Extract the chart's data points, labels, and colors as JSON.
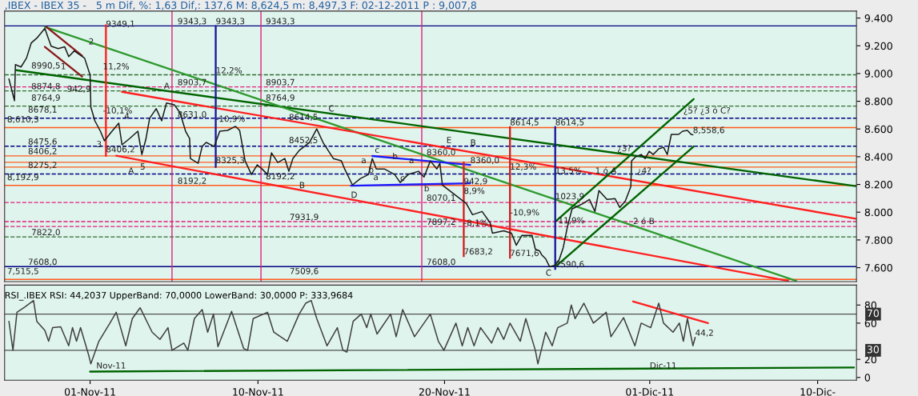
{
  "chart_data": [
    {
      "type": "line",
      "title": ",IBEX - IBEX 35 -   5 m Dif, %: 1,63 Dif,: 137,6 M: 8,624,5 m: 8,497,3 F: 02-12-2011 P : 9,007,8",
      "xlim": [
        "2011-10-27T10:00",
        "2011-12-12T02:00"
      ],
      "ylim": [
        7500,
        9450
      ],
      "yticks": [
        {
          "value": 7600,
          "label": "7.600"
        },
        {
          "value": 7800,
          "label": "7.800"
        },
        {
          "value": 8000,
          "label": "8.000"
        },
        {
          "value": 8200,
          "label": "8.200"
        },
        {
          "value": 8400,
          "label": "8.400"
        },
        {
          "value": 8600,
          "label": "8.600"
        },
        {
          "value": 8800,
          "label": "8.800"
        },
        {
          "value": 9000,
          "label": "9.000"
        },
        {
          "value": 9200,
          "label": "9.200"
        },
        {
          "value": 9400,
          "label": "9.400"
        }
      ],
      "tick_labels": "y",
      "grid": false,
      "series": [
        {
          "color": "#1a1a1a",
          "x": [
            "2011-10-27T15:35",
            "2011-10-27T22:45",
            "2011-10-27T23:55",
            "2011-10-28T07:06",
            "2011-10-28T14:12",
            "2011-10-28T20:21",
            "2011-10-29T03:27",
            "2011-10-29T13:48",
            "2011-10-29T16:44",
            "2011-10-29T21:53",
            "2011-10-30T06:56",
            "2011-10-30T15:22",
            "2011-10-30T20:31",
            "2011-10-31T03:38",
            "2011-10-31T16:54",
            "2011-11-01T00:00",
            "2011-11-01T00:58",
            "2011-11-01T06:08",
            "2011-11-01T13:15",
            "2011-11-01T18:25",
            "2011-11-02T02:31",
            "2011-11-02T12:51",
            "2011-11-02T17:04",
            "2011-11-03T03:05",
            "2011-11-03T13:25",
            "2011-11-03T18:36",
            "2011-11-03T23:46",
            "2011-11-04T04:37",
            "2011-11-04T13:02",
            "2011-11-04T20:08",
            "2011-11-05T02:17",
            "2011-11-05T12:18",
            "2011-11-05T19:44",
            "2011-11-06T02:51",
            "2011-11-06T08:01",
            "2011-11-06T09:00",
            "2011-11-06T19:01",
            "2011-11-07T00:11",
            "2011-11-07T05:21",
            "2011-11-07T15:42",
            "2011-11-07T22:49",
            "2011-11-08T08:50",
            "2011-11-08T19:11",
            "2011-11-09T00:22",
            "2011-11-09T07:28",
            "2011-11-09T15:33",
            "2011-11-09T22:59",
            "2011-11-10T05:07",
            "2011-11-10T12:14",
            "2011-11-10T17:24",
            "2011-11-11T01:29",
            "2011-11-11T10:32",
            "2011-11-11T15:43",
            "2011-11-11T20:53",
            "2011-11-12T04:58",
            "2011-11-12T18:13",
            "2011-11-13T03:36",
            "2011-11-13T11:41",
            "2011-11-14T00:56",
            "2011-11-14T11:17",
            "2011-11-14T15:29",
            "2011-11-15T01:31",
            "2011-11-15T11:51",
            "2011-11-15T22:12",
            "2011-11-16T03:03",
            "2011-11-16T08:13",
            "2011-11-16T18:33",
            "2011-11-17T07:49",
            "2011-11-17T14:56",
            "2011-11-18T01:16",
            "2011-11-18T14:31",
            "2011-11-18T21:39",
            "2011-11-19T05:43",
            "2011-11-19T14:08",
            "2011-11-19T18:00",
            "2011-11-19T21:14",
            "2011-11-21T03:58",
            "2011-11-21T12:01",
            "2011-11-22T00:19",
            "2011-11-22T10:39",
            "2011-11-22T13:34",
            "2011-11-23T04:08",
            "2011-11-23T14:08",
            "2011-11-23T20:17",
            "2011-11-24T03:23",
            "2011-11-24T16:39",
            "2011-11-24T20:51",
            "2011-11-25T02:01",
            "2011-11-25T04:56",
            "2011-11-25T10:06",
            "2011-11-25T15:17",
            "2011-11-25T22:24",
            "2011-11-26T03:33",
            "2011-11-26T08:44",
            "2011-11-26T13:55",
            "2011-11-26T20:02",
            "2011-11-27T10:16",
            "2011-11-27T18:22",
            "2011-11-28T01:28",
            "2011-11-28T06:39",
            "2011-11-28T16:59",
            "2011-11-29T03:20",
            "2011-11-29T09:29",
            "2011-11-29T16:35",
            "2011-11-29T23:41",
            "2011-11-30T00:40",
            "2011-11-30T05:50",
            "2011-11-30T12:58",
            "2011-11-30T18:07",
            "2011-11-30T23:18",
            "2011-12-01T04:28",
            "2011-12-01T11:35",
            "2011-12-01T17:44",
            "2011-12-01T22:35",
            "2011-12-02T03:45",
            "2011-12-02T13:08",
            "2011-12-02T18:17",
            "2011-12-03T00:26",
            "2011-12-03T05:17",
            "2011-12-03T07:34"
          ],
          "values": [
            8960,
            8804,
            9064,
            9047,
            9111,
            9221,
            9255,
            9325,
            9278,
            9197,
            9180,
            9192,
            9122,
            9163,
            9111,
            8989,
            8758,
            8659,
            8584,
            8515,
            8572,
            8642,
            8486,
            8532,
            8584,
            8416,
            8526,
            8677,
            8746,
            8659,
            8787,
            8775,
            8717,
            8584,
            8532,
            8387,
            8353,
            8474,
            8503,
            8474,
            8584,
            8590,
            8619,
            8590,
            8370,
            8272,
            8341,
            8312,
            8272,
            8428,
            8358,
            8387,
            8295,
            8387,
            8445,
            8503,
            8601,
            8503,
            8387,
            8370,
            8312,
            8196,
            8243,
            8272,
            8387,
            8312,
            8312,
            8272,
            8214,
            8272,
            8295,
            8254,
            8370,
            8312,
            8353,
            8196,
            8063,
            7982,
            8005,
            7924,
            7849,
            7866,
            7849,
            7762,
            7832,
            7832,
            7733,
            7722,
            7693,
            7664,
            7606,
            7618,
            7658,
            7745,
            7890,
            8023,
            8063,
            8092,
            8005,
            8156,
            8092,
            8098,
            8034,
            8081,
            8185,
            8370,
            8399,
            8416,
            8387,
            8439,
            8416,
            8457,
            8468,
            8416,
            8561,
            8561,
            8584,
            8590,
            8561,
            8558.6
          ]
        },
        {
          "color": "#006400",
          "x": [
            "2011-10-28T00:58",
            "2011-12-12T01:02"
          ],
          "values": [
            9024,
            8188
          ]
        },
        {
          "color": "#2e9a2e",
          "x": [
            "2011-10-29T13:48",
            "2011-12-08T20:25"
          ],
          "values": [
            9336,
            7505
          ]
        },
        {
          "color": "#ff2020",
          "x": [
            "2011-11-02T17:04",
            "2011-12-12T01:02"
          ],
          "values": [
            8868,
            7953
          ]
        },
        {
          "color": "#ff2020",
          "x": [
            "2011-11-02T09:37",
            "2011-12-08T10:05"
          ],
          "values": [
            8407,
            7505
          ]
        },
        {
          "color": "#006400",
          "x": [
            "2011-11-25T22:24",
            "2011-12-03T08:31"
          ],
          "values": [
            7606,
            8474
          ]
        },
        {
          "color": "#006400",
          "x": [
            "2011-11-25T23:21",
            "2011-12-03T08:31"
          ],
          "values": [
            7936,
            8816
          ]
        },
        {
          "color": "#1a1aff",
          "x": [
            "2011-11-16T03:03",
            "2011-11-21T09:07"
          ],
          "values": [
            8405,
            8341
          ]
        },
        {
          "color": "#1a1aff",
          "x": [
            "2011-11-14T23:34",
            "2011-11-21T09:07"
          ],
          "values": [
            8191,
            8208
          ]
        },
        {
          "color": "#8b1a1a",
          "x": [
            "2011-10-29T15:44",
            "2011-10-31T13:39"
          ],
          "values": [
            9336,
            9128
          ]
        },
        {
          "color": "#8b1a1a",
          "x": [
            "2011-10-29T13:48",
            "2011-10-31T13:39"
          ],
          "values": [
            9192,
            8978
          ]
        },
        {
          "color": "#ff2020",
          "x": [
            "2011-11-01T20:22",
            "2011-11-01T20:22"
          ],
          "values": [
            8406.2,
            9349.1
          ]
        },
        {
          "color": "#1a1a9a",
          "x": [
            "2011-11-07T17:38",
            "2011-11-07T17:38"
          ],
          "values": [
            8325.3,
            9343.3
          ]
        },
        {
          "color": "#d02020",
          "x": [
            "2011-11-21T00:43",
            "2011-11-21T00:43"
          ],
          "values": [
            8360.0,
            7683.2
          ]
        },
        {
          "color": "#d02020",
          "x": [
            "2011-11-23T12:12",
            "2011-11-23T12:12"
          ],
          "values": [
            8614.5,
            7671.6
          ]
        },
        {
          "color": "#1a1a9a",
          "x": [
            "2011-11-25T22:24",
            "2011-11-25T22:24"
          ],
          "values": [
            8614.5,
            7590.6
          ]
        }
      ],
      "ref_lines": [
        {
          "axis": "y",
          "value": 9343.3,
          "color": "#000080",
          "line_style": "solid"
        },
        {
          "axis": "y",
          "value": 7608.0,
          "color": "#000080",
          "line_style": "solid"
        },
        {
          "axis": "y",
          "value": 8610.3,
          "color": "#ff5a1a",
          "line_style": "solid"
        },
        {
          "axis": "y",
          "value": 8406.2,
          "color": "#ff5a1a",
          "line_style": "solid"
        },
        {
          "axis": "y",
          "value": 8360.0,
          "color": "#ff5a1a",
          "line_style": "solid"
        },
        {
          "axis": "y",
          "value": 8325.3,
          "color": "#ff5a1a",
          "line_style": "solid"
        },
        {
          "axis": "y",
          "value": 8192.9,
          "color": "#ff5a1a",
          "line_style": "solid"
        },
        {
          "axis": "y",
          "value": 7515.5,
          "color": "#ff5a1a",
          "line_style": "solid"
        },
        {
          "axis": "y",
          "value": 8678.1,
          "color": "#000080",
          "line_style": "dashed"
        },
        {
          "axis": "y",
          "value": 8475.6,
          "color": "#000080",
          "line_style": "dashed"
        },
        {
          "axis": "y",
          "value": 8275.2,
          "color": "#000080",
          "line_style": "dashed"
        },
        {
          "axis": "y",
          "value": 8990.5,
          "color": "#2e6b2e",
          "line_style": "dashed"
        },
        {
          "axis": "y",
          "value": 8874.8,
          "color": "#2e6b2e",
          "line_style": "dashed"
        },
        {
          "axis": "y",
          "value": 8764.9,
          "color": "#2e6b2e",
          "line_style": "dashed"
        },
        {
          "axis": "y",
          "value": 7822.0,
          "color": "#2e6b2e",
          "line_style": "dashed"
        },
        {
          "axis": "y",
          "value": 8903.7,
          "color": "#e0207a",
          "line_style": "dashed"
        },
        {
          "axis": "y",
          "value": 7931.9,
          "color": "#e0207a",
          "line_style": "dashed"
        },
        {
          "axis": "y",
          "value": 8070.1,
          "color": "#e0207a",
          "line_style": "dashed"
        },
        {
          "axis": "y",
          "value": 7897.2,
          "color": "#e0207a",
          "line_style": "dashed"
        },
        {
          "axis": "x",
          "value": "2011-11-05T09:23",
          "color": "#e0207a",
          "line_style": "solid"
        },
        {
          "axis": "x",
          "value": "2011-11-10T03:50",
          "color": "#e0207a",
          "line_style": "solid"
        },
        {
          "axis": "x",
          "value": "2011-11-18T18:43",
          "color": "#e0207a",
          "line_style": "solid"
        }
      ],
      "annotations": [
        {
          "text": "9343,3",
          "x": "2011-11-05T16:30",
          "y": 9343.3
        },
        {
          "text": "9343,3",
          "x": "2011-11-10T10:00",
          "y": 9343.3
        },
        {
          "text": "9343,3",
          "x": "2011-11-07T17:38",
          "y": 9343.3
        },
        {
          "text": "9349,1",
          "x": "2011-11-01T20:22",
          "y": 9325
        },
        {
          "text": "8990,5",
          "x": "2011-10-28T20:21",
          "y": 9024
        },
        {
          "text": "8874,8",
          "x": "2011-10-28T20:21",
          "y": 8874.8
        },
        {
          "text": "8764,9",
          "x": "2011-10-28T20:21",
          "y": 8792
        },
        {
          "text": "8678,1",
          "x": "2011-10-28T16:09",
          "y": 8706
        },
        {
          "text": "8475,6",
          "x": "2011-10-28T16:09",
          "y": 8475.6
        },
        {
          "text": "8406,2",
          "x": "2011-10-28T16:09",
          "y": 8406.2
        },
        {
          "text": "8275,2",
          "x": "2011-10-28T16:09",
          "y": 8306
        },
        {
          "text": "7822,0",
          "x": "2011-10-28T20:21",
          "y": 7822.0
        },
        {
          "text": "7608,0",
          "x": "2011-10-28T16:09",
          "y": 7608.0
        },
        {
          "text": "8,610,3",
          "x": "2011-10-27T13:19",
          "y": 8636
        },
        {
          "text": "8,192,9",
          "x": "2011-10-27T13:19",
          "y": 8219
        },
        {
          "text": "7,515,5",
          "x": "2011-10-27T13:19",
          "y": 7542
        },
        {
          "text": "942,9",
          "x": "2011-10-30T18:16",
          "y": 8856
        },
        {
          "text": "11,2%",
          "x": "2011-11-01T16:29",
          "y": 9018
        },
        {
          "text": "-10,1%",
          "x": "2011-11-01T16:29",
          "y": 8700
        },
        {
          "text": "8406,2",
          "x": "2011-11-01T20:22",
          "y": 8420
        },
        {
          "text": "8903,7",
          "x": "2011-11-05T16:30",
          "y": 8903.7
        },
        {
          "text": "8903,7",
          "x": "2011-11-10T10:00",
          "y": 8903.7
        },
        {
          "text": "8764,9",
          "x": "2011-11-10T10:00",
          "y": 8792
        },
        {
          "text": "8631,0",
          "x": "2011-11-05T16:30",
          "y": 8671
        },
        {
          "text": "12,2%",
          "x": "2011-11-07T17:38",
          "y": 8989
        },
        {
          "text": "-10,9%",
          "x": "2011-11-07T17:38",
          "y": 8640
        },
        {
          "text": "8325,3",
          "x": "2011-11-07T17:38",
          "y": 8341
        },
        {
          "text": "8192,2",
          "x": "2011-11-05T16:30",
          "y": 8192.9
        },
        {
          "text": "8192,2",
          "x": "2011-11-10T10:00",
          "y": 8225
        },
        {
          "text": "7931,9",
          "x": "2011-11-11T16:41",
          "y": 7931.9
        },
        {
          "text": "7509,6",
          "x": "2011-11-11T16:41",
          "y": 7542
        },
        {
          "text": "8452,5",
          "x": "2011-11-11T15:43",
          "y": 8486
        },
        {
          "text": "8614,5",
          "x": "2011-11-11T15:43",
          "y": 8653
        },
        {
          "text": "8360,0",
          "x": "2011-11-19T00:52",
          "y": 8399
        },
        {
          "text": "8360,0",
          "x": "2011-11-21T09:07",
          "y": 8341
        },
        {
          "text": "8070,1",
          "x": "2011-11-19T00:52",
          "y": 8070.1
        },
        {
          "text": "7897,2",
          "x": "2011-11-19T00:52",
          "y": 7897.2
        },
        {
          "text": "7608,0",
          "x": "2011-11-19T00:52",
          "y": 7608.0
        },
        {
          "text": "8,9%",
          "x": "2011-11-21T00:43",
          "y": 8121
        },
        {
          "text": "942,9",
          "x": "2011-11-21T00:43",
          "y": 8190
        },
        {
          "text": "12,3%",
          "x": "2011-11-23T12:12",
          "y": 8295
        },
        {
          "text": "8614,5",
          "x": "2011-11-23T12:12",
          "y": 8614.5
        },
        {
          "text": "8614,5",
          "x": "2011-11-25T22:24",
          "y": 8614.5
        },
        {
          "text": "7683,2",
          "x": "2011-11-21T00:43",
          "y": 7683.2
        },
        {
          "text": "7671,6",
          "x": "2011-11-23T12:12",
          "y": 7671.6
        },
        {
          "text": "7590,6",
          "x": "2011-11-25T22:24",
          "y": 7590.6
        },
        {
          "text": "1023,9",
          "x": "2011-11-25T22:24",
          "y": 8081
        },
        {
          "text": "-10,9%",
          "x": "2011-11-23T12:12",
          "y": 7965
        },
        {
          "text": "-8,1%",
          "x": "2011-11-21T00:43",
          "y": 7890
        },
        {
          "text": "-11,9%",
          "x": "2011-11-25T22:24",
          "y": 7907
        },
        {
          "text": "13,5%",
          "x": "2011-11-25T22:24",
          "y": 8266
        },
        {
          "text": "A",
          "x": "2011-11-04T23:02",
          "y": 8877
        },
        {
          "text": "C",
          "x": "2011-11-13T18:47",
          "y": 8714
        },
        {
          "text": "B",
          "x": "2011-11-12T04:58",
          "y": 8161
        },
        {
          "text": "D",
          "x": "2011-11-14T23:34",
          "y": 8092
        },
        {
          "text": "E",
          "x": "2011-11-20T02:24",
          "y": 8486
        },
        {
          "text": "B",
          "x": "2011-11-21T09:07",
          "y": 8468
        },
        {
          "text": "C",
          "x": "2011-11-25T10:06",
          "y": 7530
        },
        {
          "text": "A",
          "x": "2011-11-03T01:08",
          "y": 8266
        },
        {
          "text": "5",
          "x": "2011-11-03T16:20",
          "y": 8295
        },
        {
          "text": "1",
          "x": "2011-10-30T10:11",
          "y": 9018
        },
        {
          "text": "2",
          "x": "2011-10-31T22:04",
          "y": 9197
        },
        {
          "text": "3",
          "x": "2011-11-01T08:05",
          "y": 8457
        },
        {
          "text": "4",
          "x": "2011-11-02T19:58",
          "y": 8659
        },
        {
          "text": "c",
          "x": "2011-11-16T06:17",
          "y": 8416
        },
        {
          "text": "b",
          "x": "2011-11-17T04:54",
          "y": 8370
        },
        {
          "text": "a",
          "x": "2011-11-18T02:14",
          "y": 8341
        },
        {
          "text": "a",
          "x": "2011-11-15T12:49",
          "y": 8341
        },
        {
          "text": "a",
          "x": "2011-11-16T04:21",
          "y": 8219
        },
        {
          "text": "b",
          "x": "2011-11-15T22:12",
          "y": 8272
        },
        {
          "text": "c",
          "x": "2011-11-17T14:56",
          "y": 8214
        },
        {
          "text": "b",
          "x": "2011-11-18T21:39",
          "y": 8138
        },
        {
          "text": "1 ó A",
          "x": "2011-11-28T01:48",
          "y": 8266
        },
        {
          "text": "¿3?",
          "x": "2011-11-29T06:14",
          "y": 8427
        },
        {
          "text": "¿4?",
          "x": "2011-11-30T07:47",
          "y": 8266
        },
        {
          "text": "2 ó B",
          "x": "2011-11-30T02:37",
          "y": 7902
        },
        {
          "text": "¿5? ¿3 ó C?",
          "x": "2011-12-02T19:16",
          "y": 8700
        },
        {
          "text": "8,558,6",
          "x": "2011-12-03T07:34",
          "y": 8558.6
        }
      ]
    },
    {
      "type": "line",
      "title": "RSI_.IBEX RSI: 44,2037 UpperBand: 70,0000 LowerBand: 30,0000 P: 333,9684",
      "xlim": [
        "2011-10-27T10:00",
        "2011-12-12T02:00"
      ],
      "ylim": [
        -3,
        102
      ],
      "yticks": [
        0,
        20,
        60,
        80
      ],
      "xticks": [
        {
          "value": "2011-11-01",
          "label": "01-Nov-11"
        },
        {
          "value": "2011-11-10",
          "label": "10-Nov-11"
        },
        {
          "value": "2011-11-20",
          "label": "20-Nov-11"
        },
        {
          "value": "2011-12-01",
          "label": "01-Dic-11"
        },
        {
          "value": "2011-12-10",
          "label": "10-Dic-"
        }
      ],
      "grid": false,
      "series": [
        {
          "color": "#404040",
          "x": [
            "2011-10-27T15:35",
            "2011-10-27T20:46",
            "2011-10-28T01:55",
            "2011-10-28T12:16",
            "2011-10-28T23:15",
            "2011-10-29T03:27",
            "2011-10-29T13:48",
            "2011-10-29T18:39",
            "2011-10-29T23:50",
            "2011-10-30T10:11",
            "2011-10-30T20:31",
            "2011-10-31T01:22",
            "2011-10-31T06:33",
            "2011-10-31T11:43",
            "2011-10-31T22:04",
            "2011-11-01T00:58",
            "2011-11-01T11:19",
            "2011-11-02T01:32",
            "2011-11-02T09:37",
            "2011-11-02T21:55",
            "2011-11-03T06:19",
            "2011-11-03T16:20",
            "2011-11-04T07:51",
            "2011-11-04T17:53",
            "2011-11-05T04:13",
            "2011-11-05T09:23",
            "2011-11-06T00:35",
            "2011-11-06T05:45",
            "2011-11-06T14:10",
            "2011-11-07T00:11",
            "2011-11-07T07:18",
            "2011-11-07T14:44",
            "2011-11-07T20:33",
            "2011-11-08T14:01",
            "2011-11-09T05:31",
            "2011-11-09T10:42",
            "2011-11-09T17:49",
            "2011-11-10T12:14",
            "2011-11-10T20:19",
            "2011-11-11T13:46",
            "2011-11-12T04:58",
            "2011-11-12T13:22",
            "2011-11-12T20:29",
            "2011-11-13T03:36",
            "2011-11-13T16:51",
            "2011-11-14T06:06",
            "2011-11-14T13:13",
            "2011-11-14T18:23",
            "2011-11-15T02:28",
            "2011-11-15T12:49",
            "2011-11-15T19:55",
            "2011-11-16T01:06",
            "2011-11-16T09:11",
            "2011-11-17T02:38",
            "2011-11-17T09:45",
            "2011-11-17T18:10",
            "2011-11-18T09:22",
            "2011-11-19T05:43",
            "2011-11-19T16:03",
            "2011-11-19T23:11",
            "2011-11-20T14:41",
            "2011-11-20T22:46",
            "2011-11-21T05:53",
            "2011-11-21T13:58",
            "2011-11-21T22:22",
            "2011-11-22T12:36",
            "2011-11-22T20:41",
            "2011-11-23T04:08",
            "2011-11-23T12:12",
            "2011-11-24T01:28",
            "2011-11-24T08:34",
            "2011-11-24T20:51",
            "2011-11-25T00:06",
            "2011-11-25T10:06",
            "2011-11-25T18:30",
            "2011-11-26T01:38",
            "2011-11-26T13:55",
            "2011-11-26T19:05",
            "2011-11-26T23:56",
            "2011-11-27T11:15",
            "2011-11-27T23:31",
            "2011-11-28T16:00",
            "2011-11-28T22:09",
            "2011-11-29T14:20",
            "2011-11-30T04:52",
            "2011-11-30T12:58",
            "2011-12-01T01:15",
            "2011-12-01T11:35",
            "2011-12-01T17:44",
            "2011-12-02T06:00",
            "2011-12-02T14:05",
            "2011-12-02T19:16",
            "2011-12-03T00:26",
            "2011-12-03T07:34",
            "2011-12-03T10:28"
          ],
          "values": [
            62,
            30,
            72,
            78,
            85,
            62,
            52,
            40,
            55,
            56,
            35,
            55,
            40,
            55,
            25,
            15,
            40,
            60,
            72,
            35,
            65,
            77,
            50,
            42,
            55,
            30,
            38,
            30,
            65,
            75,
            50,
            70,
            34,
            73,
            32,
            30,
            65,
            72,
            50,
            40,
            70,
            82,
            85,
            65,
            35,
            55,
            30,
            28,
            62,
            70,
            55,
            70,
            48,
            70,
            45,
            75,
            45,
            70,
            40,
            30,
            60,
            35,
            55,
            35,
            55,
            38,
            55,
            42,
            60,
            40,
            65,
            30,
            15,
            50,
            35,
            55,
            60,
            80,
            65,
            82,
            60,
            72,
            45,
            66,
            35,
            60,
            55,
            82,
            60,
            50,
            60,
            40,
            65,
            35,
            44.2
          ]
        },
        {
          "color": "#ff2020",
          "x": [
            "2011-11-30T02:37",
            "2011-12-04T02:57"
          ],
          "values": [
            84,
            60
          ]
        },
        {
          "color": "#006400",
          "x": [
            "2011-11-01T00:00",
            "2011-12-11T22:46"
          ],
          "values": [
            6.5,
            11
          ]
        }
      ],
      "ref_lines": [
        {
          "axis": "y",
          "value": 70,
          "label": "70",
          "color": "#505050",
          "line_style": "solid"
        },
        {
          "axis": "y",
          "value": 30,
          "label": "30",
          "color": "#505050",
          "line_style": "solid"
        }
      ],
      "annotations": [
        {
          "text": "44,2",
          "x": "2011-12-03T10:28",
          "y": 44.2
        },
        {
          "text": "Nov-11",
          "x": "2011-11-01T08:00",
          "y": 8
        },
        {
          "text": "Dic-11",
          "x": "2011-12-01",
          "y": 8
        }
      ]
    }
  ]
}
